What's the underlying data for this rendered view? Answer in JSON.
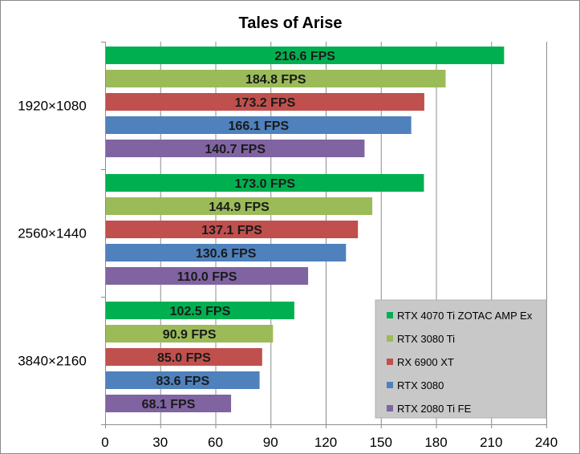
{
  "chart_data": {
    "type": "bar",
    "orientation": "horizontal",
    "title": "Tales of Arise",
    "categories": [
      "1920×1080",
      "2560×1440",
      "3840×2160"
    ],
    "series": [
      {
        "name": "RTX 4070 Ti ZOTAC AMP Ex",
        "color": "#00b050",
        "values": [
          216.6,
          173.0,
          102.5
        ],
        "labels": [
          "216.6 FPS",
          "173.0 FPS",
          "102.5 FPS"
        ]
      },
      {
        "name": "RTX 3080 Ti",
        "color": "#9bbb59",
        "values": [
          184.8,
          144.9,
          90.9
        ],
        "labels": [
          "184.8 FPS",
          "144.9 FPS",
          "90.9 FPS"
        ]
      },
      {
        "name": "RX 6900 XT",
        "color": "#c0504d",
        "values": [
          173.2,
          137.1,
          85.0
        ],
        "labels": [
          "173.2 FPS",
          "137.1 FPS",
          "85.0 FPS"
        ]
      },
      {
        "name": "RTX 3080",
        "color": "#4f81bd",
        "values": [
          166.1,
          130.6,
          83.6
        ],
        "labels": [
          "166.1 FPS",
          "130.6 FPS",
          "83.6 FPS"
        ]
      },
      {
        "name": "RTX 2080 Ti FE",
        "color": "#8064a2",
        "values": [
          140.7,
          110.0,
          68.1
        ],
        "labels": [
          "140.7 FPS",
          "110.0 FPS",
          "68.1 FPS"
        ]
      }
    ],
    "xlim": [
      0,
      240
    ],
    "xticks": [
      "0",
      "30",
      "60",
      "90",
      "120",
      "150",
      "180",
      "210",
      "240"
    ],
    "xlabel": "",
    "ylabel": "",
    "grid": true,
    "legend_position": "bottom-right"
  }
}
